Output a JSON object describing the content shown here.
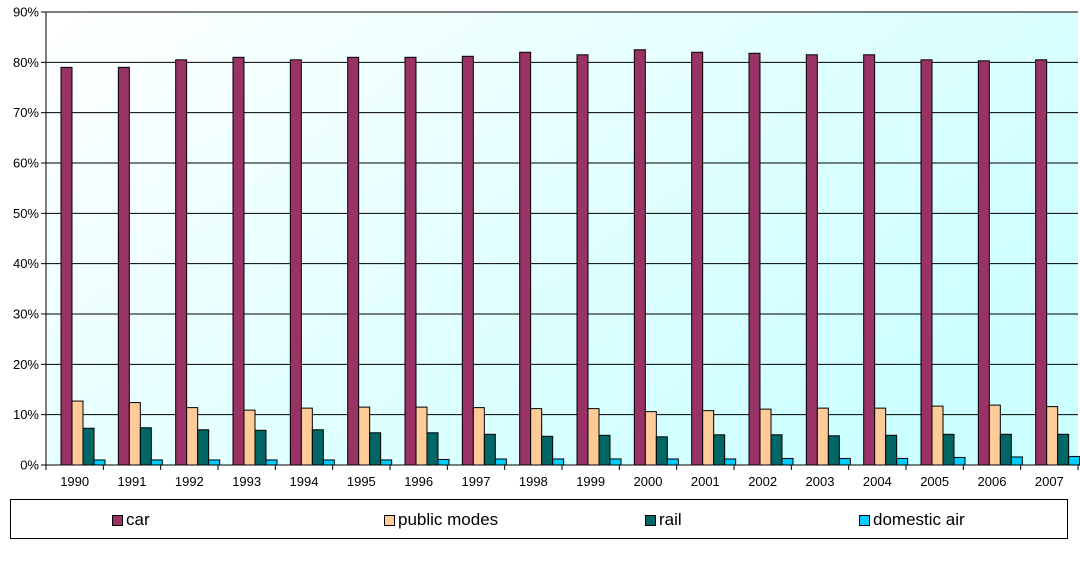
{
  "chart_data": {
    "type": "bar",
    "categories": [
      "1990",
      "1991",
      "1992",
      "1993",
      "1994",
      "1995",
      "1996",
      "1997",
      "1998",
      "1999",
      "2000",
      "2001",
      "2002",
      "2003",
      "2004",
      "2005",
      "2006",
      "2007"
    ],
    "series": [
      {
        "name": "car",
        "color": "#993366",
        "values": [
          79.0,
          79.0,
          80.5,
          81.0,
          80.5,
          81.0,
          81.0,
          81.2,
          82.0,
          81.5,
          82.5,
          82.0,
          81.8,
          81.5,
          81.5,
          80.5,
          80.3,
          80.5
        ]
      },
      {
        "name": "public modes",
        "color": "#FFCC99",
        "values": [
          12.7,
          12.4,
          11.4,
          10.9,
          11.3,
          11.5,
          11.5,
          11.4,
          11.2,
          11.2,
          10.6,
          10.8,
          11.1,
          11.3,
          11.3,
          11.7,
          11.9,
          11.6
        ]
      },
      {
        "name": "rail",
        "color": "#006666",
        "values": [
          7.3,
          7.4,
          7.0,
          6.9,
          7.0,
          6.4,
          6.4,
          6.1,
          5.7,
          5.9,
          5.6,
          6.0,
          6.0,
          5.8,
          5.9,
          6.1,
          6.1,
          6.1
        ]
      },
      {
        "name": "domestic air",
        "color": "#00CCFF",
        "values": [
          1.0,
          1.0,
          1.0,
          1.0,
          1.0,
          1.0,
          1.1,
          1.2,
          1.2,
          1.2,
          1.2,
          1.2,
          1.3,
          1.3,
          1.3,
          1.5,
          1.6,
          1.7
        ]
      }
    ],
    "ylim": [
      0,
      90
    ],
    "yticks": [
      "0%",
      "10%",
      "20%",
      "30%",
      "40%",
      "50%",
      "60%",
      "70%",
      "80%",
      "90%"
    ],
    "grid": true,
    "legend_position": "bottom",
    "plot_background": [
      "#FFFFFF",
      "#CCFFFF"
    ]
  }
}
